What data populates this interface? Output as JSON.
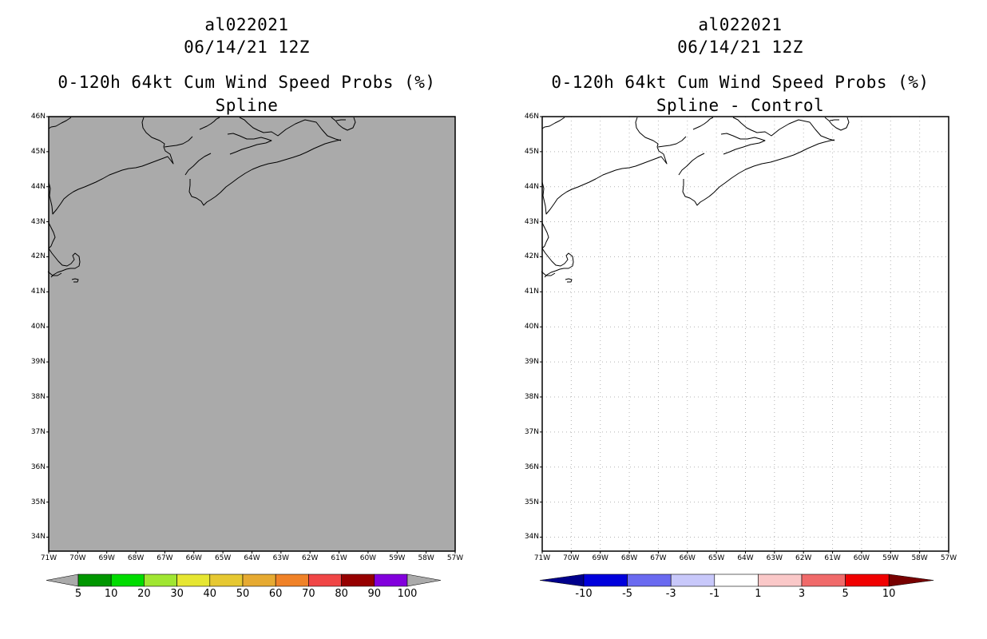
{
  "panels": [
    {
      "id": "probs",
      "storm_id": "al022021",
      "datetime": "06/14/21 12Z",
      "product": "0-120h 64kt Cum Wind Speed Probs (%)",
      "subtitle": "Spline",
      "map_fill": "#aaaaaa",
      "gridlines": false,
      "colorbar": {
        "type": "sequential",
        "colors": [
          "#009600",
          "#00dc00",
          "#a0e632",
          "#e6e632",
          "#e6c832",
          "#e6aa32",
          "#f08228",
          "#f04646",
          "#960000",
          "#8200dc"
        ],
        "end_color": "#aaaaaa",
        "labels": [
          "5",
          "10",
          "20",
          "30",
          "40",
          "50",
          "60",
          "70",
          "80",
          "90",
          "100"
        ]
      }
    },
    {
      "id": "diff",
      "storm_id": "al022021",
      "datetime": "06/14/21 12Z",
      "product": "0-120h 64kt Cum Wind Speed Probs (%)",
      "subtitle": "Spline - Control",
      "map_fill": "#ffffff",
      "gridlines": true,
      "colorbar": {
        "type": "diverging",
        "colors": [
          "#0000dc",
          "#6a6af0",
          "#c8c8fa",
          "#ffffff",
          "#fac8c8",
          "#f06a6a",
          "#f00000"
        ],
        "end_colors": [
          "#00008c",
          "#780000"
        ],
        "labels": [
          "-10",
          "-5",
          "-3",
          "-1",
          "1",
          "3",
          "5",
          "10"
        ]
      }
    }
  ],
  "axes": {
    "lat_labels": [
      "46N",
      "45N",
      "44N",
      "43N",
      "42N",
      "41N",
      "40N",
      "39N",
      "38N",
      "37N",
      "36N",
      "35N",
      "34N"
    ],
    "lon_labels": [
      "71W",
      "70W",
      "69W",
      "68W",
      "67W",
      "66W",
      "65W",
      "64W",
      "63W",
      "62W",
      "61W",
      "60W",
      "59W",
      "58W",
      "57W"
    ],
    "lat_range": [
      33.6,
      46.0
    ],
    "lon_range": [
      -71.0,
      -57.0
    ]
  }
}
